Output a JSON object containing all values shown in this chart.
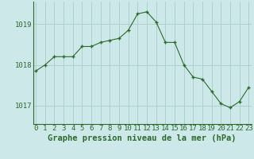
{
  "x": [
    0,
    1,
    2,
    3,
    4,
    5,
    6,
    7,
    8,
    9,
    10,
    11,
    12,
    13,
    14,
    15,
    16,
    17,
    18,
    19,
    20,
    21,
    22,
    23
  ],
  "y": [
    1017.85,
    1018.0,
    1018.2,
    1018.2,
    1018.2,
    1018.45,
    1018.45,
    1018.55,
    1018.6,
    1018.65,
    1018.85,
    1019.25,
    1019.3,
    1019.05,
    1018.55,
    1018.55,
    1018.0,
    1017.7,
    1017.65,
    1017.35,
    1017.05,
    1016.95,
    1017.1,
    1017.45
  ],
  "line_color": "#2d6a2d",
  "marker_color": "#2d6a2d",
  "bg_color": "#cce8e8",
  "grid_color": "#aacccc",
  "title": "Graphe pression niveau de la mer (hPa)",
  "xlabel_ticks": [
    "0",
    "1",
    "2",
    "3",
    "4",
    "5",
    "6",
    "7",
    "8",
    "9",
    "10",
    "11",
    "12",
    "13",
    "14",
    "15",
    "16",
    "17",
    "18",
    "19",
    "20",
    "21",
    "22",
    "23"
  ],
  "yticks": [
    1017,
    1018,
    1019
  ],
  "ylim": [
    1016.55,
    1019.55
  ],
  "xlim": [
    -0.3,
    23.3
  ],
  "tick_color": "#2d6a2d",
  "title_color": "#2d6a2d",
  "title_fontsize": 7.5,
  "tick_fontsize": 6.5
}
